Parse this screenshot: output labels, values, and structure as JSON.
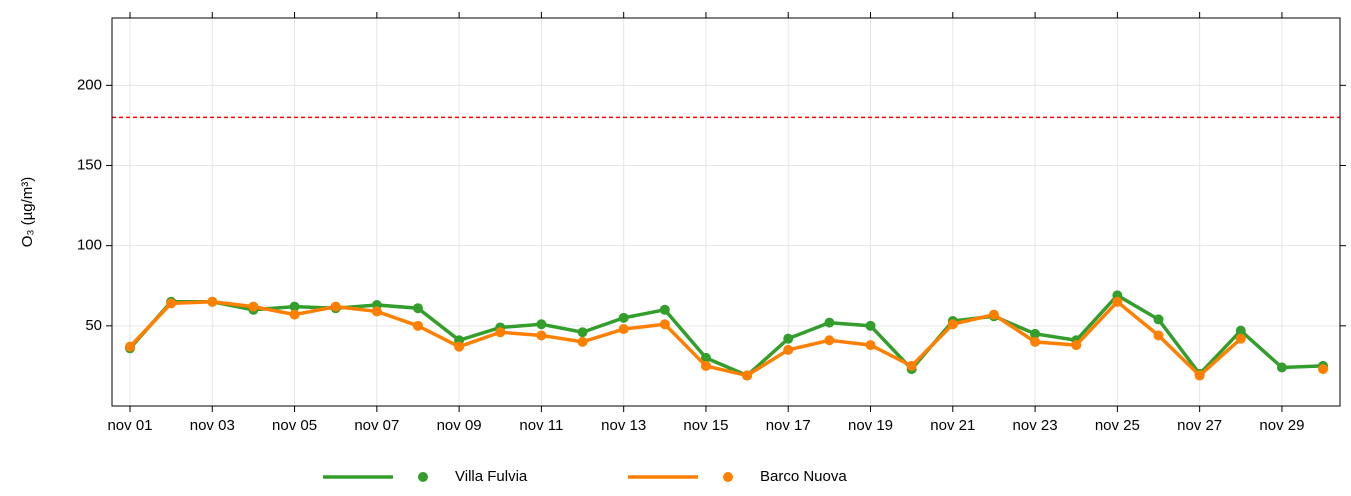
{
  "chart_data": {
    "type": "line",
    "y_label": "O₃ (µg/m³)",
    "categories": [
      "nov 01",
      null,
      "nov 03",
      null,
      "nov 05",
      null,
      "nov 07",
      null,
      "nov 09",
      null,
      "nov 11",
      null,
      "nov 13",
      null,
      "nov 15",
      null,
      "nov 17",
      null,
      "nov 19",
      null,
      "nov 21",
      null,
      "nov 23",
      null,
      "nov 25",
      null,
      "nov 27",
      null,
      "nov 29",
      null
    ],
    "series": [
      {
        "name": "Villa Fulvia",
        "color": "#339e2b",
        "values": [
          36,
          65,
          65,
          60,
          62,
          61,
          63,
          61,
          41,
          49,
          51,
          46,
          55,
          60,
          30,
          19,
          42,
          52,
          50,
          23,
          53,
          56,
          45,
          41,
          69,
          54,
          20,
          47,
          24,
          25
        ]
      },
      {
        "name": "Barco Nuova",
        "color": "#ff7f00",
        "values": [
          37,
          64,
          65,
          62,
          57,
          62,
          59,
          50,
          37,
          46,
          44,
          40,
          48,
          51,
          25,
          19,
          35,
          41,
          38,
          25,
          51,
          57,
          40,
          38,
          65,
          44,
          19,
          42,
          null,
          23
        ]
      }
    ],
    "ylim": [
      0,
      242
    ],
    "yticks": [
      50,
      100,
      150,
      200
    ],
    "threshold": 180,
    "threshold_color": "#ff0000",
    "grid": true
  }
}
